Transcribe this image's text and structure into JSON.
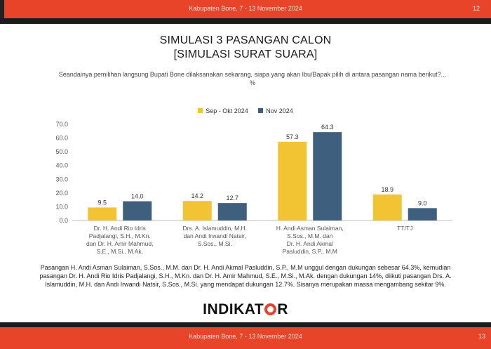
{
  "header": {
    "text": "Kabupaten Bone, 7 - 13 November 2024",
    "page": "12"
  },
  "footer": {
    "text": "Kabupaten Bone, 7 - 13 November 2024",
    "page": "13"
  },
  "title": "SIMULASI 3 PASANGAN CALON",
  "subtitle": "[SIMULASI SURAT SUARA]",
  "question": "Seandainya pemilihan langsung Bupati Bone dilaksanakan sekarang, siapa yang akan Ibu/Bapak pilih di antara pasangan nama berikut?... %",
  "summary": "Pasangan H. Andi Asman Sulaiman, S.Sos., M.M. dan Dr. H. Andi Akmal Pasluddin, S.P., M.M unggul dengan dukungan sebesar 64.3%, kemudian pasangan Dr. H. Andi Rio Idris Padjalangi, S.H., M.Kn. dan Dr. H. Amir Mahmud, S.E., M.Si., M.Ak. dengan dukungan 14%, diikuti pasangan Drs. A. Islamuddin, M.H. dan Andi Irwandi Natsir, S.Sos., M.Si. yang mendapat dukungan 12.7%. Sisanya merupakan massa mengambang sekitar 9%.",
  "logo": {
    "before": "INDIKAT",
    "after": "R"
  },
  "colors": {
    "accent": "#e8442a",
    "series1": "#f2c434",
    "series2": "#3f5f7f"
  },
  "chart_data": {
    "type": "bar",
    "categories": [
      [
        "Dr. H. Andi Rio Idris",
        "Padjalangi, S.H., M.Kn.",
        "dan Dr. H. Amir Mahmud,",
        "S.E., M.Si., M.Ak."
      ],
      [
        "Drs. A. Islamuddin, M.H.",
        "dan Andi Irwandi Natsir,",
        "S.Sos., M.Si."
      ],
      [
        "H. Andi Asman Sulaiman,",
        "S.Sos., M.M. dan",
        "Dr. H. Andi Akmal",
        "Pasluddin, S.P., M.M"
      ],
      [
        "TT/TJ"
      ]
    ],
    "series": [
      {
        "name": "Sep - Okt 2024",
        "values": [
          9.5,
          14.2,
          57.3,
          18.9
        ],
        "labels": [
          "9.5",
          "14.2",
          "57.3",
          "18.9"
        ]
      },
      {
        "name": "Nov 2024",
        "values": [
          14.0,
          12.7,
          64.3,
          9.0
        ],
        "labels": [
          "14.0",
          "12.7",
          "64.3",
          "9.0"
        ]
      }
    ],
    "ylim": [
      0,
      70
    ],
    "yticks": [
      "0.0",
      "10.0",
      "20.0",
      "30.0",
      "40.0",
      "50.0",
      "60.0",
      "70.0"
    ],
    "legend": "top",
    "grid": false
  }
}
